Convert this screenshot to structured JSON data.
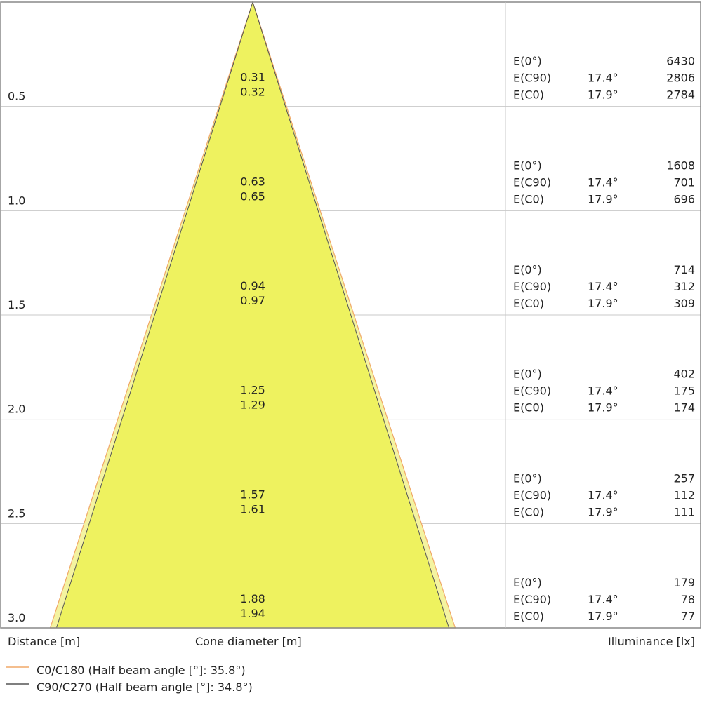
{
  "chart_data": {
    "type": "cone-diagram",
    "xlabel_left": "Distance [m]",
    "xlabel_center": "Cone diameter [m]",
    "xlabel_right": "Illuminance [lx]",
    "colors": {
      "fill": "#eef25f",
      "c0": "#f0a868",
      "c90": "#555555",
      "grid": "#c8c8c8",
      "frame": "#888888"
    },
    "legend": [
      {
        "label": "C0/C180 (Half beam angle [°]: 35.8°)",
        "color": "#f0a868"
      },
      {
        "label": "C90/C270 (Half beam angle [°]: 34.8°)",
        "color": "#555555"
      }
    ],
    "rows": [
      {
        "distance": "0.5",
        "d_c90": "0.31",
        "d_c0": "0.32",
        "e0_label": "E(0°)",
        "e0": "6430",
        "ec90_label": "E(C90)",
        "ec90_angle": "17.4°",
        "ec90": "2806",
        "ec0_label": "E(C0)",
        "ec0_angle": "17.9°",
        "ec0": "2784"
      },
      {
        "distance": "1.0",
        "d_c90": "0.63",
        "d_c0": "0.65",
        "e0_label": "E(0°)",
        "e0": "1608",
        "ec90_label": "E(C90)",
        "ec90_angle": "17.4°",
        "ec90": "701",
        "ec0_label": "E(C0)",
        "ec0_angle": "17.9°",
        "ec0": "696"
      },
      {
        "distance": "1.5",
        "d_c90": "0.94",
        "d_c0": "0.97",
        "e0_label": "E(0°)",
        "e0": "714",
        "ec90_label": "E(C90)",
        "ec90_angle": "17.4°",
        "ec90": "312",
        "ec0_label": "E(C0)",
        "ec0_angle": "17.9°",
        "ec0": "309"
      },
      {
        "distance": "2.0",
        "d_c90": "1.25",
        "d_c0": "1.29",
        "e0_label": "E(0°)",
        "e0": "402",
        "ec90_label": "E(C90)",
        "ec90_angle": "17.4°",
        "ec90": "175",
        "ec0_label": "E(C0)",
        "ec0_angle": "17.9°",
        "ec0": "174"
      },
      {
        "distance": "2.5",
        "d_c90": "1.57",
        "d_c0": "1.61",
        "e0_label": "E(0°)",
        "e0": "257",
        "ec90_label": "E(C90)",
        "ec90_angle": "17.4°",
        "ec90": "112",
        "ec0_label": "E(C0)",
        "ec0_angle": "17.9°",
        "ec0": "111"
      },
      {
        "distance": "3.0",
        "d_c90": "1.88",
        "d_c0": "1.94",
        "e0_label": "E(0°)",
        "e0": "179",
        "ec90_label": "E(C90)",
        "ec90_angle": "17.4°",
        "ec90": "78",
        "ec0_label": "E(C0)",
        "ec0_angle": "17.9°",
        "ec0": "77"
      }
    ]
  }
}
